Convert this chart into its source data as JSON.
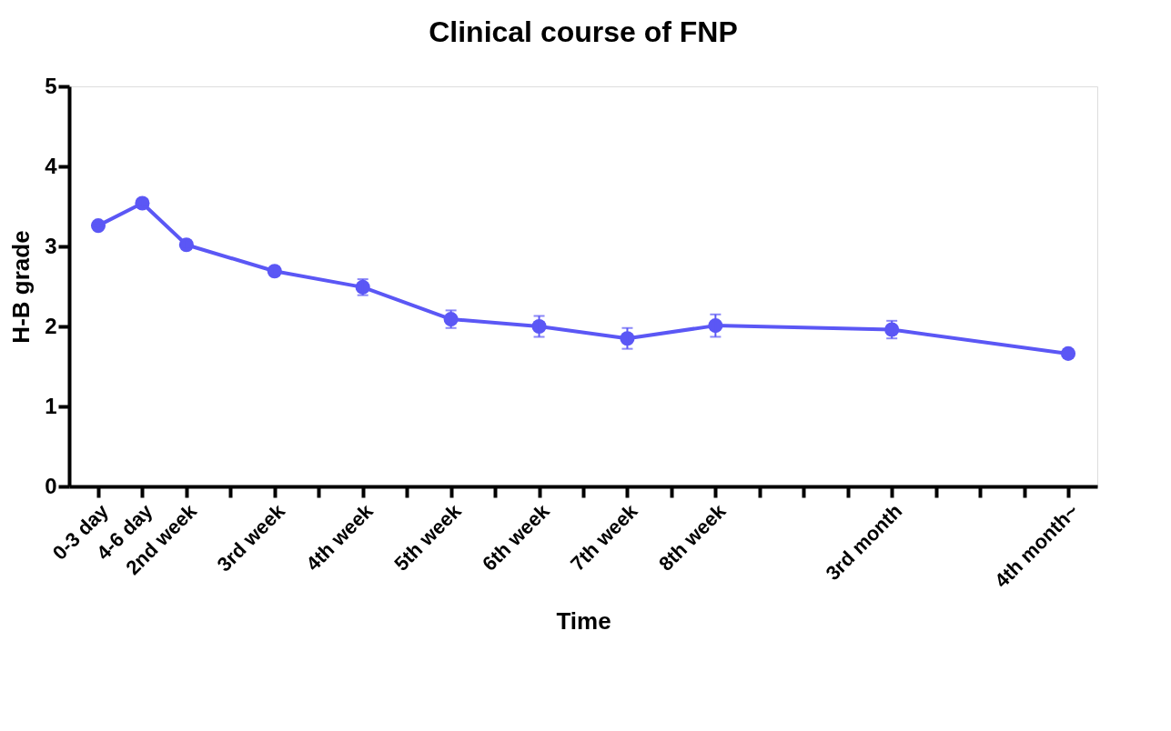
{
  "chart_data": {
    "type": "line",
    "title": "Clinical course of FNP",
    "xlabel": "Time",
    "ylabel": "H-B grade",
    "categories": [
      "0-3 day",
      "4-6 day",
      "2nd week",
      null,
      "3rd week",
      null,
      "4th week",
      null,
      "5th week",
      null,
      "6th week",
      null,
      "7th week",
      null,
      "8th week",
      null,
      null,
      null,
      "3rd month",
      null,
      null,
      null,
      "4th month~"
    ],
    "series": [
      {
        "color": "#5b57f5",
        "values": [
          3.26,
          3.54,
          3.02,
          null,
          2.69,
          null,
          2.49,
          null,
          2.09,
          null,
          2.0,
          null,
          1.85,
          null,
          2.01,
          null,
          null,
          null,
          1.96,
          null,
          null,
          null,
          1.66
        ],
        "errors": [
          0.03,
          0.05,
          0.05,
          null,
          0.05,
          null,
          0.1,
          null,
          0.11,
          null,
          0.13,
          null,
          0.13,
          null,
          0.14,
          null,
          null,
          null,
          0.11,
          null,
          null,
          null,
          0.05
        ]
      }
    ],
    "ylim": [
      0,
      5
    ],
    "yticks": [
      0,
      1,
      2,
      3,
      4,
      5
    ],
    "grid": false,
    "marker": "circle",
    "line_style": "solid"
  }
}
